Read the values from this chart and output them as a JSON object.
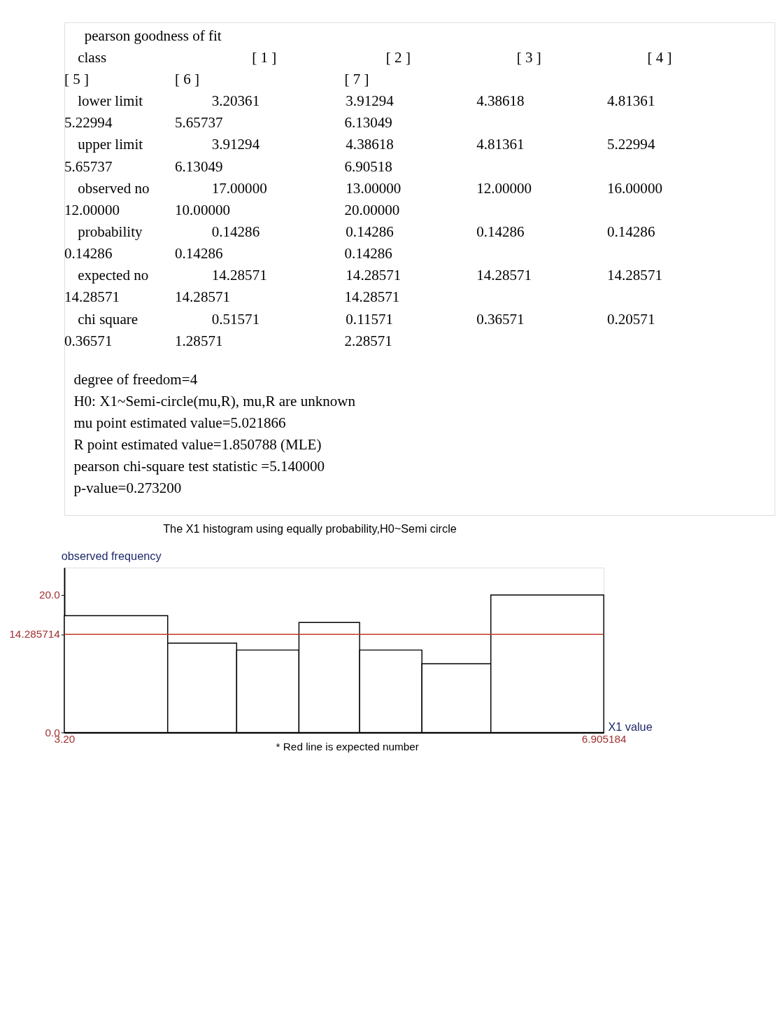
{
  "chart_data": {
    "type": "histogram",
    "title": "The X1 histogram using equally probability,H0~Semi circle",
    "xlabel": "X1 value",
    "ylabel": "observed frequency",
    "bins": [
      3.20361,
      3.91294,
      4.38618,
      4.81361,
      5.22994,
      5.65737,
      6.13049,
      6.90518
    ],
    "values": [
      17,
      13,
      12,
      16,
      12,
      10,
      20
    ],
    "color": "#000000",
    "xlim": [
      3.20361,
      6.905184
    ],
    "ylim": [
      0,
      24
    ],
    "xticks": [
      {
        "value": 3.20361,
        "label": "3.20"
      },
      {
        "value": 6.905184,
        "label": "6.905184"
      }
    ],
    "yticks": [
      {
        "value": 0,
        "label": "0.0"
      },
      {
        "value": 14.285714,
        "label": "14.285714"
      },
      {
        "value": 20,
        "label": "20.0"
      }
    ],
    "ref_lines": [
      {
        "axis": "y",
        "value": 14.285714,
        "color": "#c0392b"
      }
    ],
    "grid": false,
    "annotations": [
      "pearson goodness of fit",
      "class  [ 1 ]  [ 2 ]  [ 3 ]  [ 4 ]",
      "[ 5 ]  [ 6 ]  [ 7 ]",
      "lower limit  3.20361  3.91294  4.38618  4.81361",
      "5.22994  5.65737  6.13049",
      "upper limit  3.91294  4.38618  4.81361  5.22994",
      "5.65737  6.13049  6.90518",
      "observed no  17.00000  13.00000  12.00000  16.00000",
      "12.00000  10.00000  20.00000",
      "probability  0.14286  0.14286  0.14286  0.14286",
      "0.14286  0.14286  0.14286",
      "expected no  14.28571  14.28571  14.28571  14.28571",
      "14.28571  14.28571  14.28571",
      "chi square  0.51571  0.11571  0.36571  0.20571",
      "0.36571  1.28571  2.28571",
      "degree of freedom=4",
      "H0: X1~Semi-circle(mu,R), mu,R are unknown",
      "mu point estimated value=5.021866",
      "R point estimated value=1.850788 (MLE)",
      "pearson chi-square test statistic =5.140000",
      "p-value=0.273200",
      "* Red line is expected number"
    ]
  }
}
